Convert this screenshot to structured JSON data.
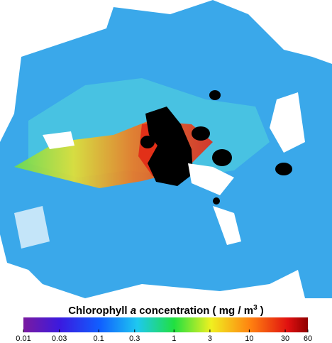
{
  "colorbar": {
    "title": {
      "prefix": "Chlorophyll ",
      "italic": "a",
      "middle": " concentration   ( mg / m",
      "superscript": "3",
      "suffix": " )"
    },
    "scale": "log",
    "range": [
      0.01,
      60
    ],
    "ticks": [
      0.01,
      0.03,
      0.1,
      0.3,
      1,
      3,
      10,
      30,
      60
    ]
  }
}
